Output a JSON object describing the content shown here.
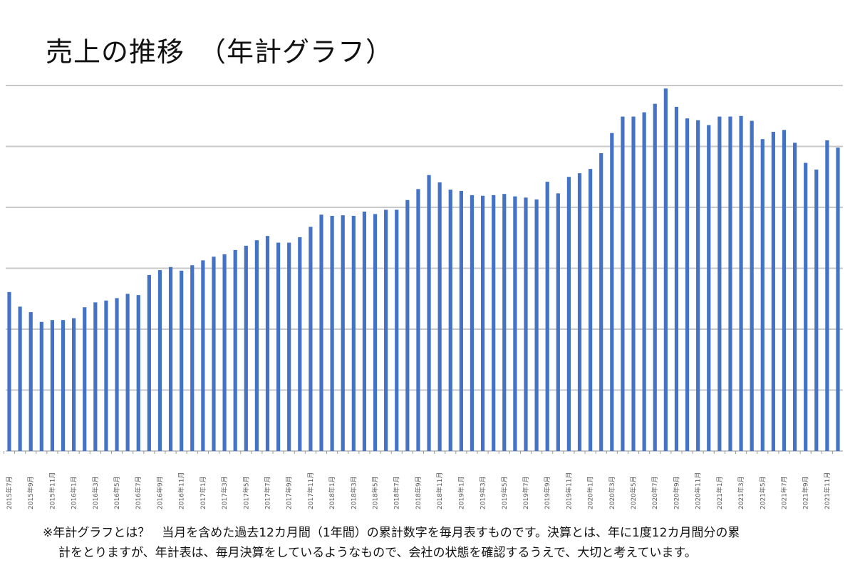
{
  "chart_data": {
    "type": "bar",
    "title": "売上の推移　（年計グラフ）",
    "xlabel": "",
    "ylabel": "",
    "ylim": [
      0,
      6
    ],
    "grid": true,
    "y_tick_labels_shown": false,
    "bar_color": "#4472c4",
    "grid_color": "#c8c8c8",
    "tick_labels": [
      "2015年7月",
      "2015年9月",
      "2015年11月",
      "2016年1月",
      "2016年3月",
      "2016年5月",
      "2016年7月",
      "2016年9月",
      "2016年11月",
      "2017年1月",
      "2017年3月",
      "2017年5月",
      "2017年7月",
      "2017年9月",
      "2017年11月",
      "2018年1月",
      "2018年3月",
      "2018年5月",
      "2018年7月",
      "2018年9月",
      "2018年11月",
      "2019年1月",
      "2019年3月",
      "2019年5月",
      "2019年7月",
      "2019年9月",
      "2019年11月",
      "2020年1月",
      "2020年3月",
      "2020年5月",
      "2020年7月",
      "2020年9月",
      "2020年11月",
      "2021年1月",
      "2021年3月",
      "2021年5月",
      "2021年7月",
      "2021年9月",
      "2021年11月"
    ],
    "values": [
      2.61,
      2.37,
      2.28,
      2.12,
      2.15,
      2.15,
      2.18,
      2.36,
      2.44,
      2.47,
      2.51,
      2.58,
      2.56,
      2.89,
      2.97,
      3.02,
      2.96,
      3.05,
      3.13,
      3.19,
      3.23,
      3.3,
      3.37,
      3.46,
      3.53,
      3.42,
      3.42,
      3.51,
      3.68,
      3.88,
      3.86,
      3.87,
      3.86,
      3.93,
      3.89,
      3.96,
      3.96,
      4.12,
      4.3,
      4.53,
      4.41,
      4.29,
      4.27,
      4.2,
      4.19,
      4.2,
      4.22,
      4.18,
      4.16,
      4.13,
      4.42,
      4.23,
      4.5,
      4.56,
      4.63,
      4.89,
      5.22,
      5.49,
      5.49,
      5.56,
      5.7,
      5.95,
      5.65,
      5.46,
      5.43,
      5.35,
      5.49,
      5.49,
      5.5,
      5.42,
      5.12,
      5.24,
      5.27,
      5.06,
      4.73,
      4.62,
      5.1,
      4.98
    ]
  },
  "footnote": {
    "line1": "※年計グラフとは？　当月を含めた過去12カ月間（1年間）の累計数字を毎月表すものです。決算とは、年に1度12カ月間分の累",
    "line2": "計をとりますが、年計表は、毎月決算をしているようなもので、会社の状態を確認するうえで、大切と考えています。"
  }
}
